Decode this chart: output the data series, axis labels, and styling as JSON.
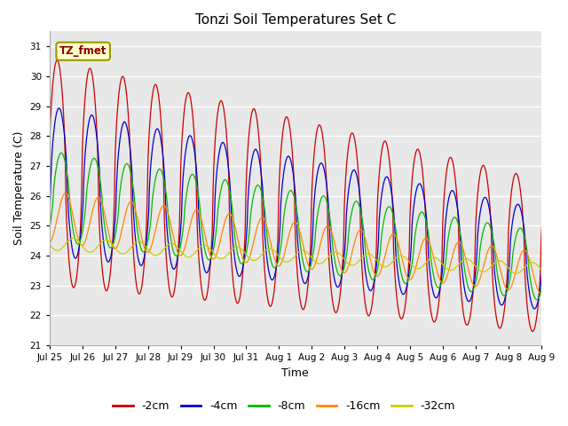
{
  "title": "Tonzi Soil Temperatures Set C",
  "xlabel": "Time",
  "ylabel": "Soil Temperature (C)",
  "ylim": [
    21.0,
    31.5
  ],
  "yticks": [
    21.0,
    22.0,
    23.0,
    24.0,
    25.0,
    26.0,
    27.0,
    28.0,
    29.0,
    30.0,
    31.0
  ],
  "xtick_labels": [
    "Jul 25",
    "Jul 26",
    "Jul 27",
    "Jul 28",
    "Jul 29",
    "Jul 30",
    "Jul 31",
    "Aug 1",
    "Aug 2",
    "Aug 3",
    "Aug 4",
    "Aug 5",
    "Aug 6",
    "Aug 7",
    "Aug 8",
    "Aug 9"
  ],
  "series_colors": [
    "#cc0000",
    "#0000cc",
    "#00bb00",
    "#ff8800",
    "#cccc00"
  ],
  "series_labels": [
    "-2cm",
    "-4cm",
    "-8cm",
    "-16cm",
    "-32cm"
  ],
  "plot_bg_color": "#e8e8e8",
  "fig_bg_color": "#ffffff",
  "annotation_text": "TZ_fmet",
  "annotation_bg": "#ffffcc",
  "annotation_border": "#999900",
  "num_days": 16
}
